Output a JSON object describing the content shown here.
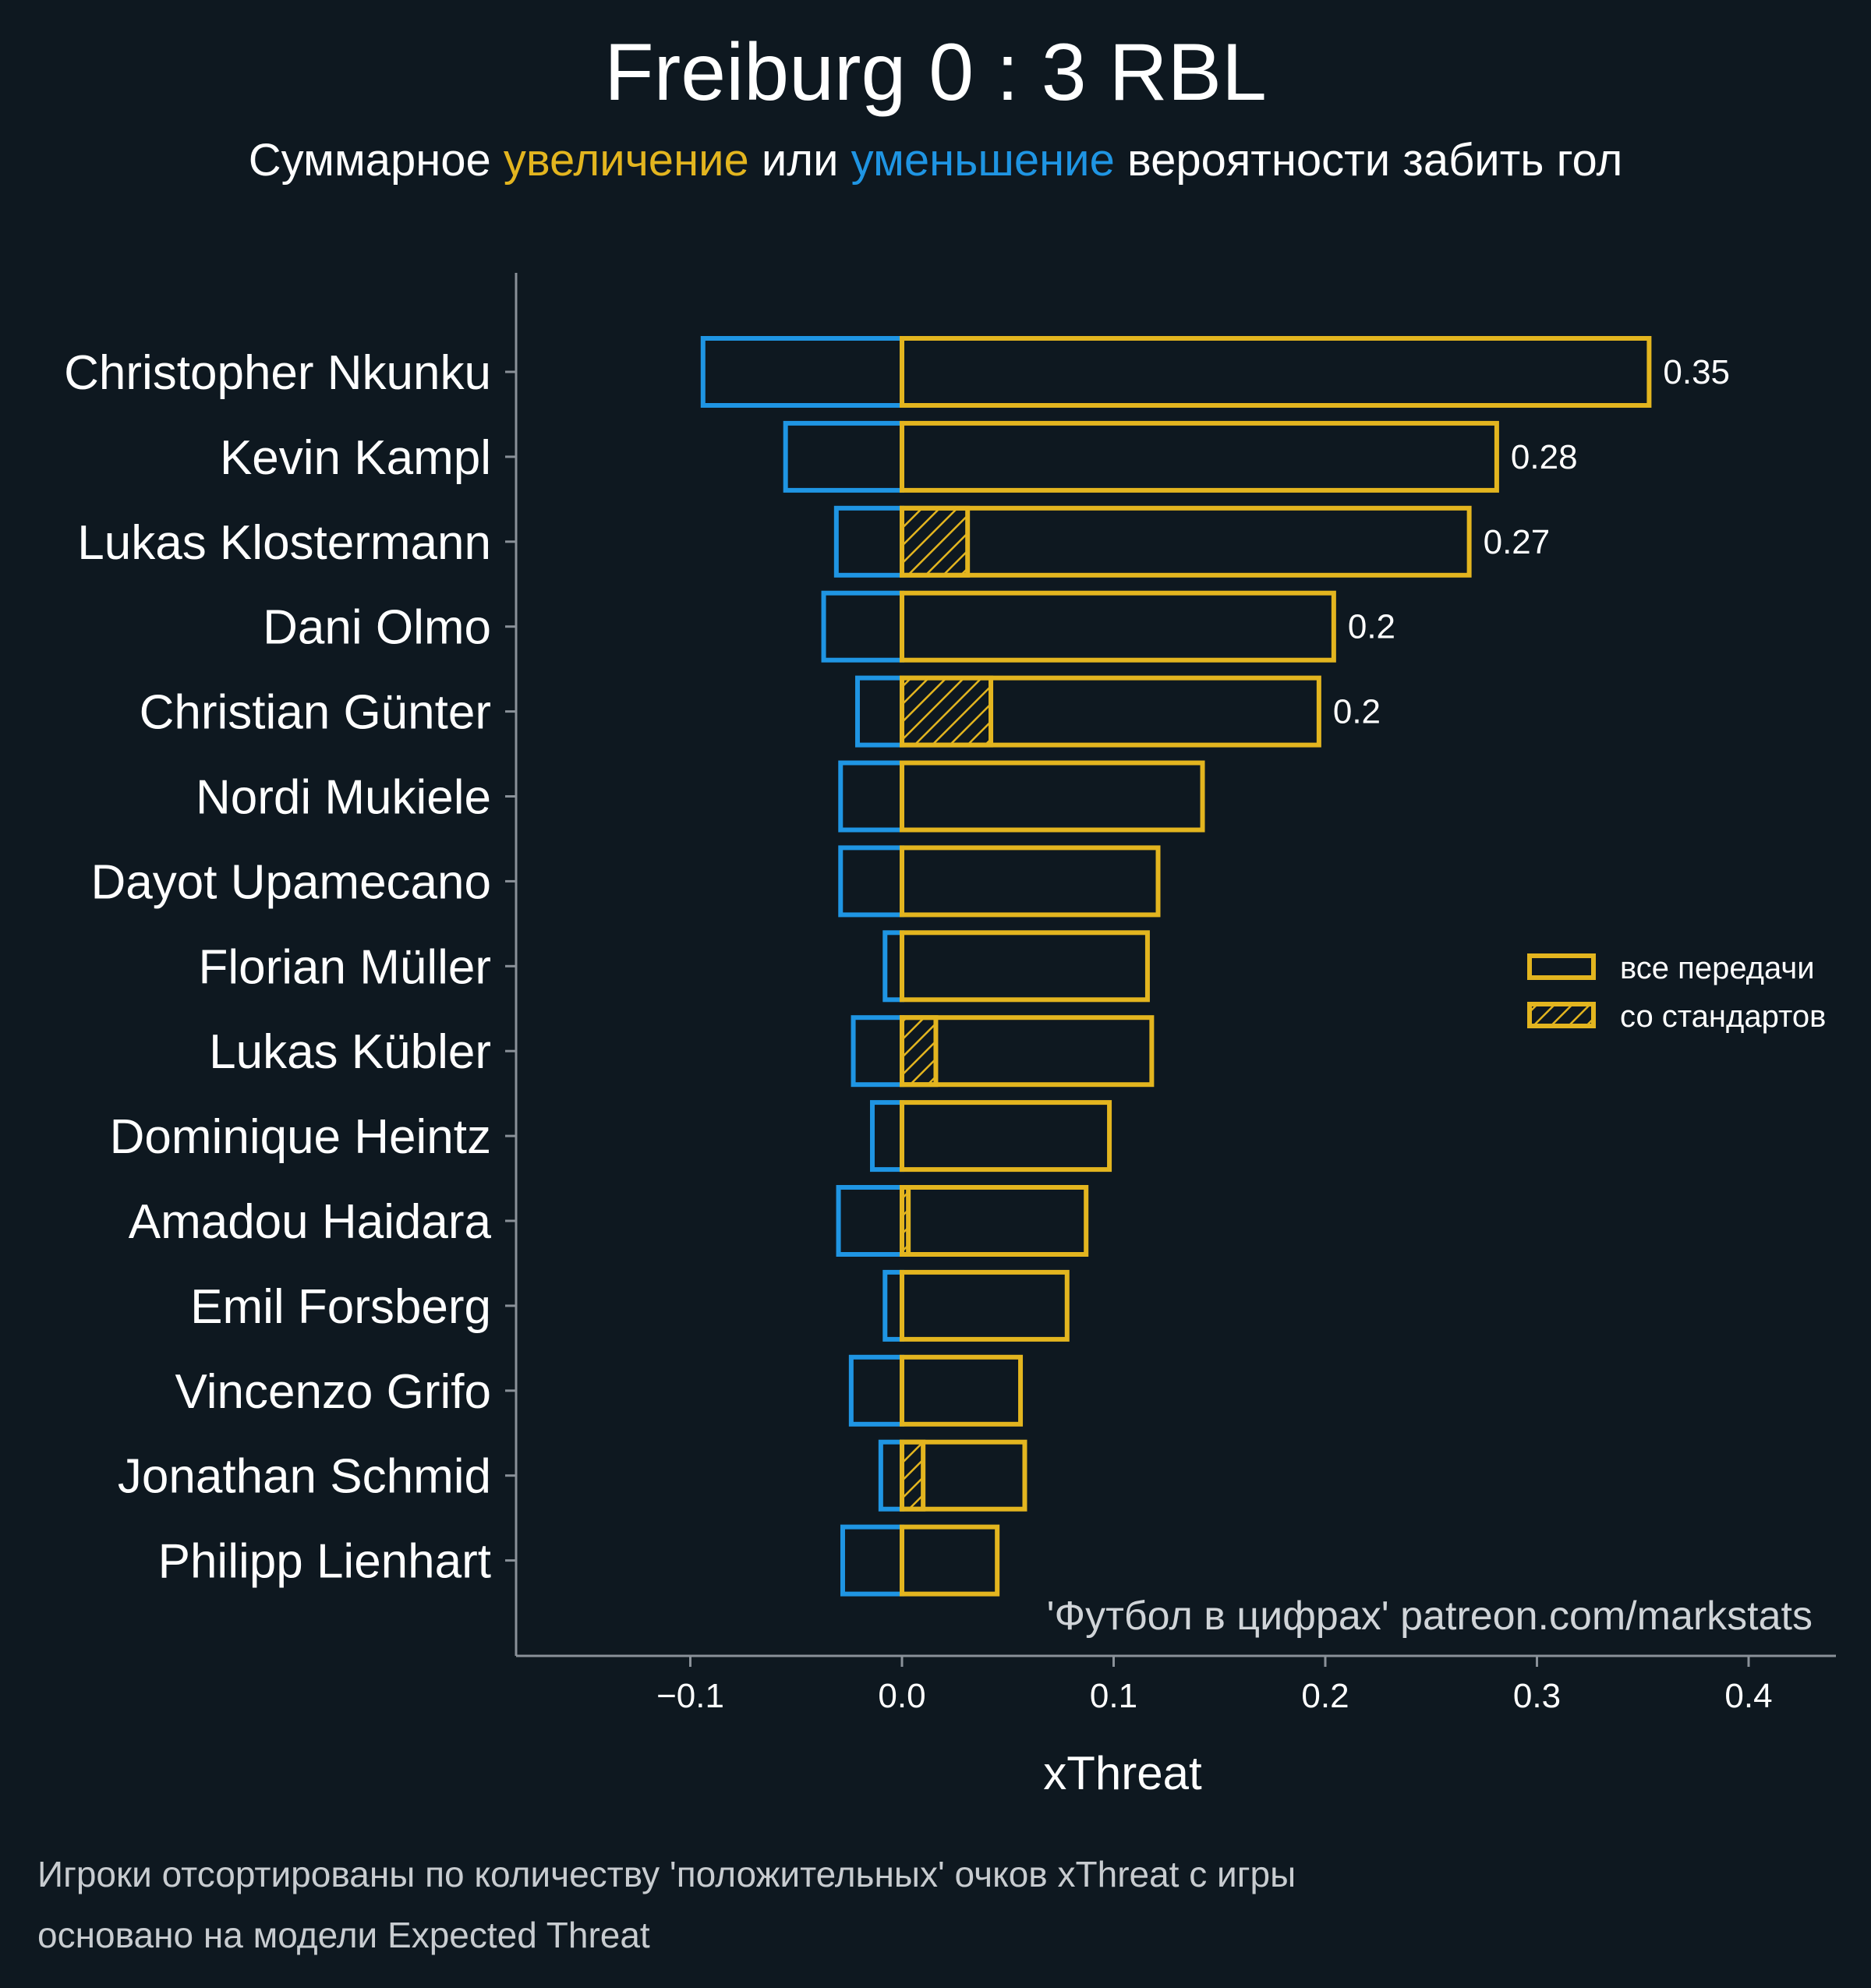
{
  "title": "Freiburg 0 : 3 RBL",
  "subtitle": {
    "prefix": "Суммарное ",
    "increase": "увеличение",
    "middle": " или ",
    "decrease": "уменьшение",
    "suffix": " вероятности забить гол"
  },
  "colors": {
    "background": "#0e1820",
    "positive": "#e3b51f",
    "negative": "#1f95e3",
    "axis": "#8a9199",
    "text": "#ffffff"
  },
  "legend": {
    "all_passes": "все передачи",
    "set_pieces": "со стандартов"
  },
  "watermark": "'Футбол в цифрах' patreon.com/markstats",
  "footnote": {
    "line1": "Игроки отсортированы по количеству 'положительных' очков xThreat с игры",
    "line2": "основано на модели Expected Threat"
  },
  "chart_data": {
    "type": "bar",
    "orientation": "horizontal",
    "xlabel": "xThreat",
    "xlim": [
      -0.18,
      0.44
    ],
    "xticks": [
      -0.1,
      0.0,
      0.1,
      0.2,
      0.3,
      0.4
    ],
    "xtick_labels": [
      "−0.1",
      "0.0",
      "0.1",
      "0.2",
      "0.3",
      "0.4"
    ],
    "categories": [
      "Christopher Nkunku",
      "Kevin Kampl",
      "Lukas Klostermann",
      "Dani Olmo",
      "Christian Günter",
      "Nordi Mukiele",
      "Dayot Upamecano",
      "Florian Müller",
      "Lukas Kübler",
      "Dominique Heintz",
      "Amadou Haidara",
      "Emil Forsberg",
      "Vincenzo Grifo",
      "Jonathan Schmid",
      "Philipp Lienhart"
    ],
    "series": [
      {
        "name": "positive (все передачи)",
        "values": [
          0.353,
          0.281,
          0.268,
          0.204,
          0.197,
          0.142,
          0.121,
          0.116,
          0.118,
          0.098,
          0.087,
          0.078,
          0.056,
          0.058,
          0.045
        ]
      },
      {
        "name": "negative",
        "values": [
          -0.094,
          -0.055,
          -0.031,
          -0.037,
          -0.021,
          -0.029,
          -0.029,
          -0.008,
          -0.023,
          -0.014,
          -0.03,
          -0.008,
          -0.024,
          -0.01,
          -0.028
        ]
      },
      {
        "name": "со стандартов",
        "values": [
          0,
          0,
          0.031,
          0,
          0.042,
          0,
          0,
          0,
          0.016,
          0,
          0.003,
          0,
          0,
          0.01,
          0
        ]
      }
    ],
    "value_labels": [
      "0.35",
      "0.28",
      "0.27",
      "0.2",
      "0.2",
      "",
      "",
      "",
      "",
      "",
      "",
      "",
      "",
      "",
      ""
    ],
    "legend_position": "center-right"
  }
}
